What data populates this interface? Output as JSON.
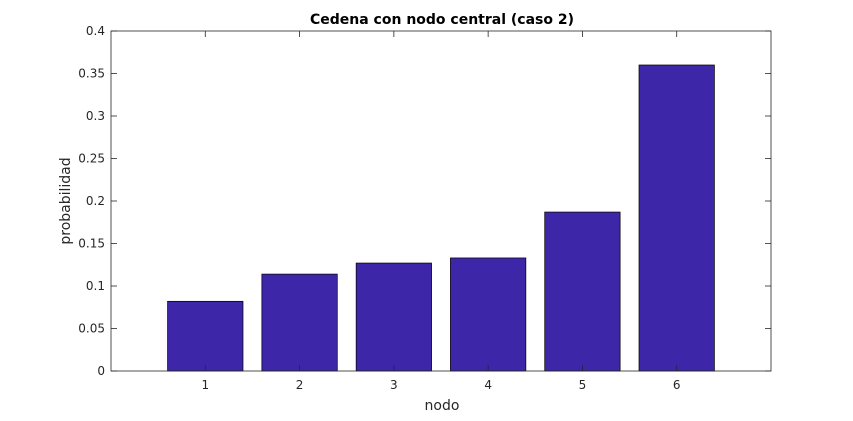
{
  "chart_data": {
    "type": "bar",
    "title": "Cedena con nodo central (caso 2)",
    "xlabel": "nodo",
    "ylabel": "probabilidad",
    "categories": [
      "1",
      "2",
      "3",
      "4",
      "5",
      "6"
    ],
    "values": [
      0.082,
      0.114,
      0.127,
      0.133,
      0.187,
      0.36
    ],
    "ylim": [
      0,
      0.4
    ],
    "xlim": [
      0,
      7
    ],
    "yticks": [
      0,
      0.05,
      0.1,
      0.15,
      0.2,
      0.25,
      0.3,
      0.35,
      0.4
    ],
    "ytick_labels": [
      "0",
      "0.05",
      "0.1",
      "0.15",
      "0.2",
      "0.25",
      "0.3",
      "0.35",
      "0.4"
    ],
    "grid": false,
    "bar_color": "#3e26a8",
    "bar_edge_color": "#000000"
  }
}
